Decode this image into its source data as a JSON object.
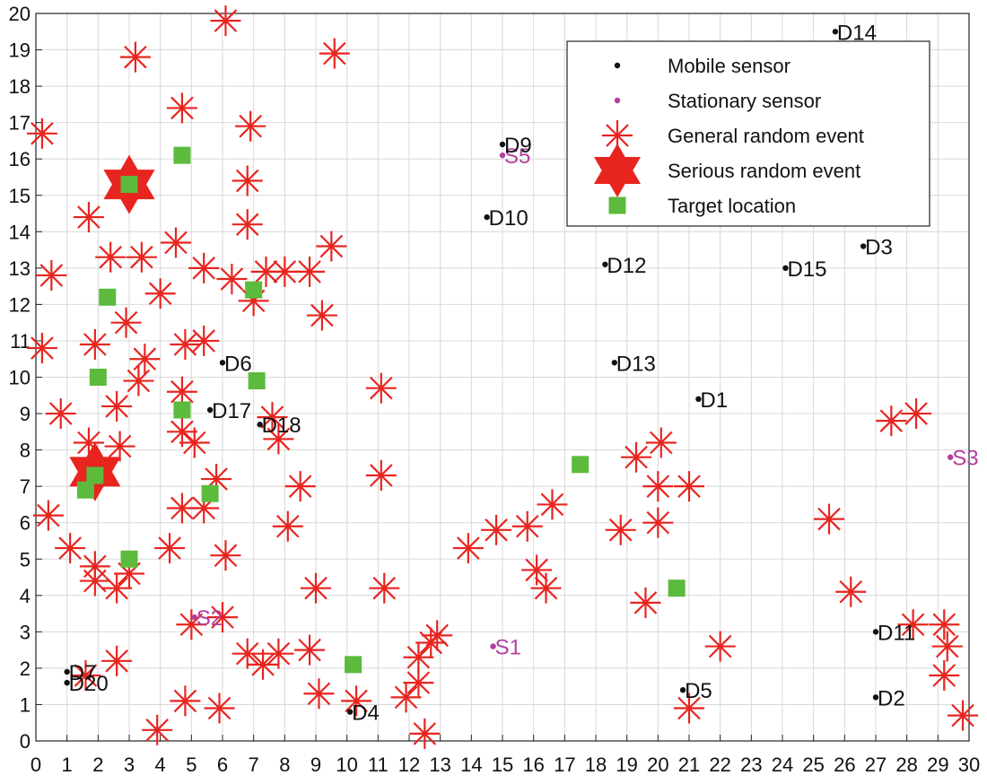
{
  "chart_data": {
    "type": "scatter",
    "title": "",
    "xlabel": "",
    "ylabel": "",
    "xlim": [
      0,
      30
    ],
    "ylim": [
      0,
      20
    ],
    "xticks": [
      "0",
      "1",
      "2",
      "3",
      "4",
      "5",
      "6",
      "7",
      "8",
      "9",
      "10",
      "11",
      "12",
      "13",
      "14",
      "15",
      "16",
      "17",
      "18",
      "19",
      "20",
      "21",
      "22",
      "23",
      "24",
      "25",
      "26",
      "27",
      "28",
      "29",
      "30"
    ],
    "yticks": [
      "0",
      "1",
      "2",
      "3",
      "4",
      "5",
      "6",
      "7",
      "8",
      "9",
      "10",
      "11",
      "12",
      "13",
      "14",
      "15",
      "16",
      "17",
      "18",
      "19",
      "20"
    ],
    "grid": true,
    "legend_position": "top-right",
    "colors": {
      "mobile": "#111111",
      "stationary": "#b0409f",
      "event": "#e8241f",
      "serious": "#e8241f",
      "target": "#5cba3c"
    },
    "legend": [
      {
        "key": "mobile",
        "label": "Mobile sensor"
      },
      {
        "key": "stationary",
        "label": "Stationary sensor"
      },
      {
        "key": "event",
        "label": "General random event"
      },
      {
        "key": "serious",
        "label": "Serious random event"
      },
      {
        "key": "target",
        "label": "Target location"
      }
    ],
    "series": [
      {
        "name": "Mobile sensor",
        "key": "mobile",
        "points": [
          {
            "x": 21.3,
            "y": 9.4,
            "label": "D1"
          },
          {
            "x": 27.0,
            "y": 1.2,
            "label": "D2"
          },
          {
            "x": 26.6,
            "y": 13.6,
            "label": "D3"
          },
          {
            "x": 10.1,
            "y": 0.8,
            "label": "D4"
          },
          {
            "x": 20.8,
            "y": 1.4,
            "label": "D5"
          },
          {
            "x": 6.0,
            "y": 10.4,
            "label": "D6"
          },
          {
            "x": 1.0,
            "y": 1.9,
            "label": "D7"
          },
          {
            "x": 15.0,
            "y": 16.4,
            "label": "D9"
          },
          {
            "x": 14.5,
            "y": 14.4,
            "label": "D10"
          },
          {
            "x": 27.0,
            "y": 3.0,
            "label": "D11"
          },
          {
            "x": 18.3,
            "y": 13.1,
            "label": "D12"
          },
          {
            "x": 18.6,
            "y": 10.4,
            "label": "D13"
          },
          {
            "x": 25.7,
            "y": 19.5,
            "label": "D14"
          },
          {
            "x": 24.1,
            "y": 13.0,
            "label": "D15"
          },
          {
            "x": 5.6,
            "y": 9.1,
            "label": "D17"
          },
          {
            "x": 7.2,
            "y": 8.7,
            "label": "D18"
          },
          {
            "x": 1.0,
            "y": 1.6,
            "label": "D20"
          }
        ]
      },
      {
        "name": "Stationary sensor",
        "key": "stationary",
        "points": [
          {
            "x": 14.7,
            "y": 2.6,
            "label": "S1"
          },
          {
            "x": 5.1,
            "y": 3.4,
            "label": "S2"
          },
          {
            "x": 29.4,
            "y": 7.8,
            "label": "S3"
          },
          {
            "x": 15.0,
            "y": 16.1,
            "label": "S5"
          }
        ]
      },
      {
        "name": "General random event",
        "key": "event",
        "points": [
          {
            "x": 6.1,
            "y": 19.8
          },
          {
            "x": 3.2,
            "y": 18.8
          },
          {
            "x": 9.6,
            "y": 18.9
          },
          {
            "x": 4.7,
            "y": 17.4
          },
          {
            "x": 0.2,
            "y": 16.7
          },
          {
            "x": 6.9,
            "y": 16.9
          },
          {
            "x": 6.8,
            "y": 15.4
          },
          {
            "x": 1.7,
            "y": 14.4
          },
          {
            "x": 6.8,
            "y": 14.2
          },
          {
            "x": 4.5,
            "y": 13.7
          },
          {
            "x": 9.5,
            "y": 13.6
          },
          {
            "x": 2.4,
            "y": 13.3
          },
          {
            "x": 3.4,
            "y": 13.3
          },
          {
            "x": 5.4,
            "y": 13.0
          },
          {
            "x": 0.5,
            "y": 12.8
          },
          {
            "x": 6.3,
            "y": 12.7
          },
          {
            "x": 7.4,
            "y": 12.9
          },
          {
            "x": 8.0,
            "y": 12.9
          },
          {
            "x": 8.8,
            "y": 12.9
          },
          {
            "x": 4.0,
            "y": 12.3
          },
          {
            "x": 7.0,
            "y": 12.1
          },
          {
            "x": 2.9,
            "y": 11.5
          },
          {
            "x": 9.2,
            "y": 11.7
          },
          {
            "x": 0.2,
            "y": 10.8
          },
          {
            "x": 1.9,
            "y": 10.9
          },
          {
            "x": 4.8,
            "y": 10.9
          },
          {
            "x": 5.4,
            "y": 11.0
          },
          {
            "x": 3.5,
            "y": 10.5
          },
          {
            "x": 3.3,
            "y": 9.9
          },
          {
            "x": 11.1,
            "y": 9.7
          },
          {
            "x": 4.7,
            "y": 9.6
          },
          {
            "x": 2.6,
            "y": 9.2
          },
          {
            "x": 0.8,
            "y": 9.0
          },
          {
            "x": 7.6,
            "y": 8.9
          },
          {
            "x": 4.7,
            "y": 8.5
          },
          {
            "x": 5.1,
            "y": 8.2
          },
          {
            "x": 1.7,
            "y": 8.2
          },
          {
            "x": 2.7,
            "y": 8.1
          },
          {
            "x": 7.8,
            "y": 8.3
          },
          {
            "x": 11.1,
            "y": 7.3
          },
          {
            "x": 5.8,
            "y": 7.2
          },
          {
            "x": 8.5,
            "y": 7.0
          },
          {
            "x": 0.4,
            "y": 6.2
          },
          {
            "x": 4.7,
            "y": 6.4
          },
          {
            "x": 5.4,
            "y": 6.4
          },
          {
            "x": 8.1,
            "y": 5.9
          },
          {
            "x": 1.1,
            "y": 5.3
          },
          {
            "x": 4.3,
            "y": 5.3
          },
          {
            "x": 6.1,
            "y": 5.1
          },
          {
            "x": 1.9,
            "y": 4.8
          },
          {
            "x": 1.9,
            "y": 4.4
          },
          {
            "x": 2.6,
            "y": 4.2
          },
          {
            "x": 3.0,
            "y": 4.6
          },
          {
            "x": 9.0,
            "y": 4.2
          },
          {
            "x": 11.2,
            "y": 4.2
          },
          {
            "x": 5.0,
            "y": 3.2
          },
          {
            "x": 6.0,
            "y": 3.4
          },
          {
            "x": 2.6,
            "y": 2.2
          },
          {
            "x": 6.8,
            "y": 2.4
          },
          {
            "x": 7.3,
            "y": 2.1
          },
          {
            "x": 7.8,
            "y": 2.4
          },
          {
            "x": 8.8,
            "y": 2.5
          },
          {
            "x": 1.6,
            "y": 1.8
          },
          {
            "x": 4.8,
            "y": 1.1
          },
          {
            "x": 5.9,
            "y": 0.9
          },
          {
            "x": 3.9,
            "y": 0.3
          },
          {
            "x": 9.1,
            "y": 1.3
          },
          {
            "x": 10.3,
            "y": 1.1
          },
          {
            "x": 11.9,
            "y": 1.2
          },
          {
            "x": 12.3,
            "y": 1.6
          },
          {
            "x": 12.3,
            "y": 2.3
          },
          {
            "x": 12.7,
            "y": 2.7
          },
          {
            "x": 12.9,
            "y": 2.9
          },
          {
            "x": 12.5,
            "y": 0.2
          },
          {
            "x": 13.9,
            "y": 5.3
          },
          {
            "x": 14.8,
            "y": 5.8
          },
          {
            "x": 15.8,
            "y": 5.9
          },
          {
            "x": 16.6,
            "y": 6.5
          },
          {
            "x": 16.1,
            "y": 4.7
          },
          {
            "x": 16.4,
            "y": 4.2
          },
          {
            "x": 18.8,
            "y": 5.8
          },
          {
            "x": 19.3,
            "y": 7.8
          },
          {
            "x": 20.1,
            "y": 8.2
          },
          {
            "x": 20.0,
            "y": 7.0
          },
          {
            "x": 21.0,
            "y": 7.0
          },
          {
            "x": 20.0,
            "y": 6.0
          },
          {
            "x": 19.6,
            "y": 3.8
          },
          {
            "x": 21.0,
            "y": 0.9
          },
          {
            "x": 22.0,
            "y": 2.6
          },
          {
            "x": 25.5,
            "y": 6.1
          },
          {
            "x": 26.2,
            "y": 4.1
          },
          {
            "x": 27.5,
            "y": 8.8
          },
          {
            "x": 28.3,
            "y": 9.0
          },
          {
            "x": 28.2,
            "y": 3.2
          },
          {
            "x": 29.2,
            "y": 3.2
          },
          {
            "x": 29.3,
            "y": 2.6
          },
          {
            "x": 29.2,
            "y": 1.8
          },
          {
            "x": 29.8,
            "y": 0.7
          }
        ]
      },
      {
        "name": "Serious random event",
        "key": "serious",
        "points": [
          {
            "x": 3.0,
            "y": 15.3
          },
          {
            "x": 1.9,
            "y": 7.4
          }
        ]
      },
      {
        "name": "Target location",
        "key": "target",
        "points": [
          {
            "x": 4.7,
            "y": 16.1
          },
          {
            "x": 3.0,
            "y": 15.3
          },
          {
            "x": 2.3,
            "y": 12.2
          },
          {
            "x": 7.0,
            "y": 12.4
          },
          {
            "x": 2.0,
            "y": 10.0
          },
          {
            "x": 7.1,
            "y": 9.9
          },
          {
            "x": 4.7,
            "y": 9.1
          },
          {
            "x": 1.9,
            "y": 7.3
          },
          {
            "x": 1.6,
            "y": 6.9
          },
          {
            "x": 5.6,
            "y": 6.8
          },
          {
            "x": 3.0,
            "y": 5.0
          },
          {
            "x": 17.5,
            "y": 7.6
          },
          {
            "x": 20.6,
            "y": 4.2
          },
          {
            "x": 10.2,
            "y": 2.1
          }
        ]
      }
    ]
  }
}
